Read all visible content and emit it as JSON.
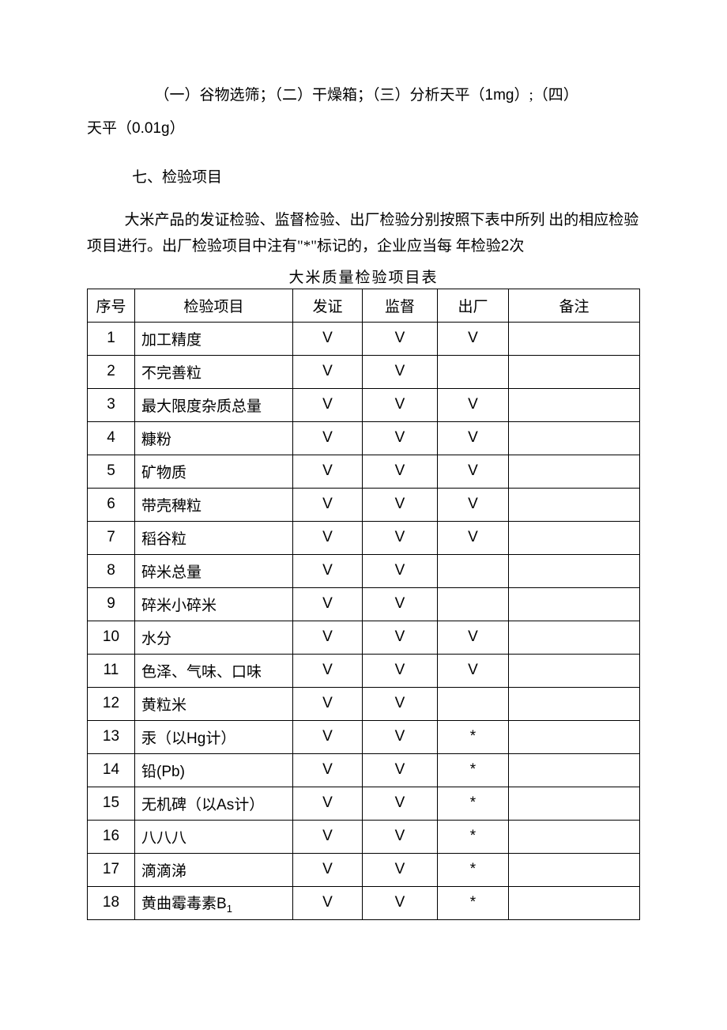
{
  "text": {
    "para1_part1": "（一）谷物选筛；（二）干燥箱；（三）分析天平（",
    "para1_1mg": "1mg",
    "para1_part2": "）;（四）",
    "para1_line2_a": "天平（",
    "para1_001g": "0.01g",
    "para1_line2_b": "）",
    "para2": "七、检验项目",
    "para3_a": "大米产品的发证检验、监督检验、出厂检验分别按照下表中所列 出的相应检验项目进行。出厂检验项目中注有\"*\"标记的，企业应当每 年检验",
    "para3_2": "2",
    "para3_b": "次",
    "table_title": "大米质量检验项目表"
  },
  "table": {
    "headers": {
      "seq": "序号",
      "item": "检验项目",
      "cert": "发证",
      "super": "监督",
      "factory": "出厂",
      "remark": "备注"
    },
    "rows": [
      {
        "seq": "1",
        "item": "加工精度",
        "cert": "V",
        "super": "V",
        "factory": "V",
        "remark": ""
      },
      {
        "seq": "2",
        "item": "不完善粒",
        "cert": "V",
        "super": "V",
        "factory": "",
        "remark": ""
      },
      {
        "seq": "3",
        "item": "最大限度杂质总量",
        "cert": "V",
        "super": "V",
        "factory": "V",
        "remark": ""
      },
      {
        "seq": "4",
        "item": "糠粉",
        "cert": "V",
        "super": "V",
        "factory": "V",
        "remark": ""
      },
      {
        "seq": "5",
        "item": "矿物质",
        "cert": "V",
        "super": "V",
        "factory": "V",
        "remark": ""
      },
      {
        "seq": "6",
        "item": "带壳稗粒",
        "cert": "V",
        "super": "V",
        "factory": "V",
        "remark": ""
      },
      {
        "seq": "7",
        "item": "稻谷粒",
        "cert": "V",
        "super": "V",
        "factory": "V",
        "remark": ""
      },
      {
        "seq": "8",
        "item": "碎米总量",
        "cert": "V",
        "super": "V",
        "factory": "",
        "remark": ""
      },
      {
        "seq": "9",
        "item": "碎米小碎米",
        "cert": "V",
        "super": "V",
        "factory": "",
        "remark": ""
      },
      {
        "seq": "10",
        "item": "水分",
        "cert": "V",
        "super": "V",
        "factory": "V",
        "remark": ""
      },
      {
        "seq": "11",
        "item": "色泽、气味、口味",
        "cert": "V",
        "super": "V",
        "factory": "V",
        "remark": ""
      },
      {
        "seq": "12",
        "item": "黄粒米",
        "cert": "V",
        "super": "V",
        "factory": "",
        "remark": ""
      },
      {
        "seq": "13",
        "item_pre": "汞（以",
        "item_mid": "Hg",
        "item_post": "计）",
        "cert": "V",
        "super": "V",
        "factory": "*",
        "remark": ""
      },
      {
        "seq": "14",
        "item_pre": "铅",
        "item_mid": "(Pb)",
        "item_post": "",
        "cert": "V",
        "super": "V",
        "factory": "*",
        "remark": ""
      },
      {
        "seq": "15",
        "item_pre": "无机碑（以",
        "item_mid": "As",
        "item_post": "计）",
        "cert": "V",
        "super": "V",
        "factory": "*",
        "remark": ""
      },
      {
        "seq": "16",
        "item": "八八八",
        "cert": "V",
        "super": "V",
        "factory": "*",
        "remark": ""
      },
      {
        "seq": "17",
        "item": "滴滴涕",
        "cert": "V",
        "super": "V",
        "factory": "*",
        "remark": ""
      },
      {
        "seq": "18",
        "item_pre": "黄曲霉毒素",
        "item_mid": "B",
        "item_sub": "1",
        "item_post": "",
        "cert": "V",
        "super": "V",
        "factory": "*",
        "remark": ""
      }
    ]
  }
}
